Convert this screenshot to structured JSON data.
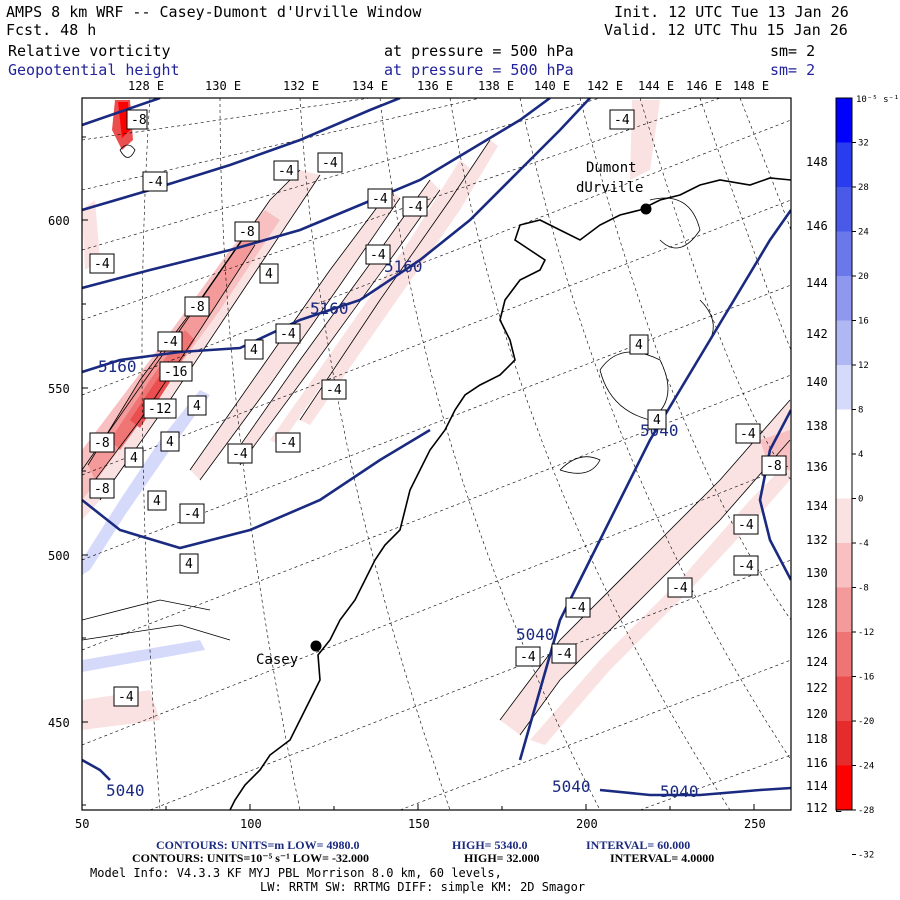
{
  "header": {
    "title_left": "AMPS 8 km WRF -- Casey-Dumont d'Urville Window",
    "forecast": "Fcst.    48 h",
    "init": "Init. 12 UTC Tue 13 Jan 26",
    "valid": "Valid. 12 UTC Thu 15 Jan 26",
    "field1_name": "Relative vorticity",
    "field1_level": "at pressure =  500 hPa",
    "field1_smooth": "sm= 2",
    "field2_name": "Geopotential height",
    "field2_level": "at pressure =  500 hPa",
    "field2_smooth": "sm= 2"
  },
  "axes": {
    "top_lon_labels": [
      "128 E",
      "130 E",
      "132 E",
      "134 E",
      "136 E",
      "138 E",
      "140 E",
      "142 E",
      "144 E",
      "146 E",
      "148 E"
    ],
    "right_lon_labels": [
      "148 E",
      "146 E",
      "144 E",
      "142 E",
      "140 E",
      "138 E",
      "136 E",
      "134 E",
      "132 E",
      "130 E",
      "128 E",
      "126 E",
      "124 E",
      "122 E",
      "120 E",
      "118 E",
      "116 E",
      "114 E",
      "112 E"
    ],
    "left_grid_labels": [
      "600",
      "550",
      "500",
      "450"
    ],
    "bottom_grid_labels": [
      "50",
      "100",
      "150",
      "200",
      "250"
    ]
  },
  "stations": [
    {
      "name": "Dumont",
      "name2": "dUrville"
    },
    {
      "name": "Casey"
    }
  ],
  "height_labels": [
    "5160",
    "5160",
    "5160",
    "5040",
    "5040",
    "5040",
    "5040",
    "5040"
  ],
  "vorticity_labels": [
    "-8",
    "-4",
    "-4",
    "-4",
    "-4",
    "-4",
    "-4",
    "-8",
    "-4",
    "-4",
    "4",
    "-8",
    "-4",
    "4",
    "-4",
    "-16",
    "4",
    "-12",
    "4",
    "-4",
    "4",
    "-8",
    "4",
    "-4",
    "-4",
    "-8",
    "4",
    "-4",
    "4",
    "4",
    "-4",
    "-4",
    "-8",
    "-4",
    "-4",
    "-4",
    "-4",
    "-4",
    "-4",
    "-4"
  ],
  "colorbar": {
    "unit": "10⁻⁵ s⁻¹",
    "ticks": [
      "32",
      "28",
      "24",
      "20",
      "16",
      "12",
      "8",
      "4",
      "0",
      "-4",
      "-8",
      "-12",
      "-16",
      "-20",
      "-24",
      "-28",
      "-32"
    ],
    "colors": [
      "#0000ff",
      "#2a3cf0",
      "#4a5ae8",
      "#6a78ec",
      "#8e98f0",
      "#b0b8f4",
      "#d6dafa",
      "#ffffff",
      "#ffffff",
      "#fbe2e2",
      "#f8c0c0",
      "#f49a9a",
      "#ef7474",
      "#ea4e4e",
      "#e52b2b",
      "#ff0000"
    ]
  },
  "footer": {
    "line1_a": "CONTOURS:  UNITS=m  LOW=  4980.0",
    "line1_b": "HIGH=  5340.0",
    "line1_c": "INTERVAL=  60.000",
    "line2_a": "CONTOURS:  UNITS=10⁻⁵ s⁻¹  LOW= -32.000",
    "line2_b": "HIGH=  32.000",
    "line2_c": "INTERVAL=  4.0000",
    "line3": "Model Info: V4.3.3   KF      MYJ PBL  Morrison        8.0 km,  60 levels,",
    "line4": "LW: RRTM SW: RRTMG   DIFF: simple KM: 2D Smagor"
  }
}
